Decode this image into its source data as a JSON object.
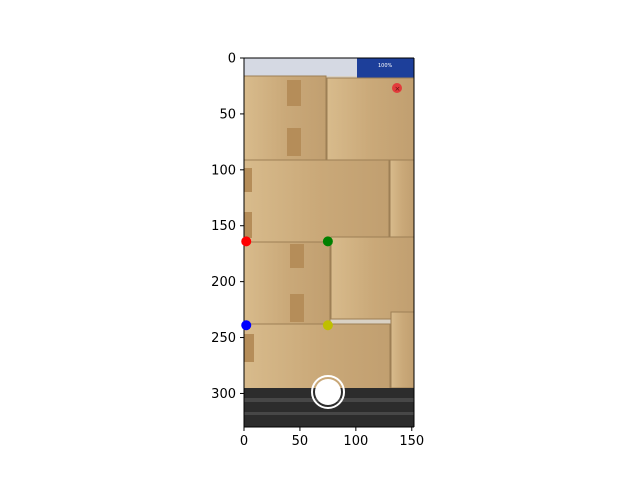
{
  "chart_data": {
    "type": "scatter",
    "image_background": "phone camera view of stacked cardboard boxes on a pallet",
    "xlim": [
      0,
      152
    ],
    "ylim": [
      330,
      0
    ],
    "x_ticks": [
      0,
      50,
      100,
      150
    ],
    "y_ticks": [
      0,
      50,
      100,
      150,
      200,
      250,
      300
    ],
    "x_tick_labels": [
      "0",
      "50",
      "100",
      "150"
    ],
    "y_tick_labels": [
      "0",
      "50",
      "100",
      "150",
      "200",
      "250",
      "300"
    ],
    "grid": false,
    "points": [
      {
        "x": 2,
        "y": 164,
        "color": "#ff0000"
      },
      {
        "x": 75,
        "y": 164,
        "color": "#008000"
      },
      {
        "x": 2,
        "y": 239,
        "color": "#0000ff"
      },
      {
        "x": 75,
        "y": 239,
        "color": "#bfbf00"
      }
    ]
  },
  "camera_ui": {
    "status_bar_text": "100%",
    "shutter_icon": "shutter-button-icon",
    "close_icon": "close-icon"
  },
  "colors": {
    "box_cardboard": "#c9a97b",
    "box_shadow": "#a98a5f",
    "tape": "#b58d59",
    "pallet": "#2c2c2c",
    "status_bar": "#1d3f9a",
    "close_red": "#e23b3b"
  }
}
